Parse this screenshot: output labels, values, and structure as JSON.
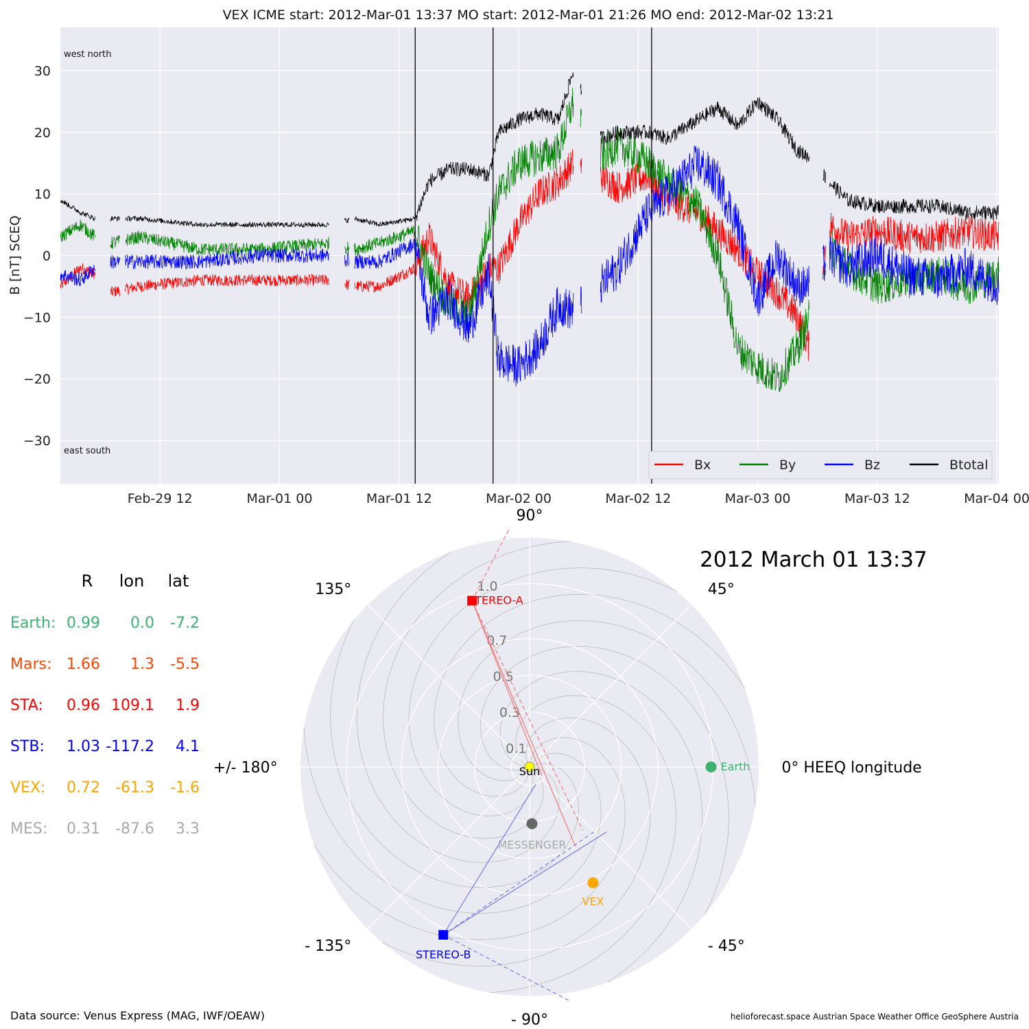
{
  "header": {
    "title": "VEX    ICME start: 2012-Mar-01 13:37   MO start: 2012-Mar-01 21:26   MO end: 2012-Mar-02 13:21"
  },
  "chart_data": [
    {
      "type": "line",
      "ylabel": "B [nT] SCEQ",
      "ylim": [
        -37,
        37
      ],
      "yticks": [
        -30,
        -20,
        -10,
        0,
        10,
        20,
        30
      ],
      "ytick_labels": [
        "−30",
        "−20",
        "−10",
        "0",
        "10",
        "20",
        "30"
      ],
      "xlim": [
        "2012-02-29T02:00",
        "2012-03-04T00:12"
      ],
      "xticks": [
        "2012-02-29T12:00",
        "2012-03-01T00:00",
        "2012-03-01T12:00",
        "2012-03-02T00:00",
        "2012-03-02T12:00",
        "2012-03-03T00:00",
        "2012-03-03T12:00",
        "2012-03-04T00:00"
      ],
      "xtick_labels": [
        "Feb-29 12",
        "Mar-01 00",
        "Mar-01 12",
        "Mar-02 00",
        "Mar-02 12",
        "Mar-03 00",
        "Mar-03 12",
        "Mar-04 00"
      ],
      "grid": true,
      "annotations": {
        "top_left": "west    north",
        "bottom_left": "east    south"
      },
      "vertical_lines": [
        "2012-03-01T13:37",
        "2012-03-01T21:26",
        "2012-03-02T13:21"
      ],
      "legend": {
        "placement": "lower-right",
        "entries": [
          "Bx",
          "By",
          "Bz",
          "Btotal"
        ]
      },
      "colors": {
        "Bx": "#ff0000",
        "By": "#008000",
        "Bz": "#0000ff",
        "Btotal": "#000000"
      },
      "gaps": [
        [
          "2012-02-29T05:30",
          "2012-02-29T07:00"
        ],
        [
          "2012-02-29T08:00",
          "2012-02-29T08:30"
        ],
        [
          "2012-03-01T05:00",
          "2012-03-01T06:30"
        ],
        [
          "2012-03-01T07:00",
          "2012-03-01T07:30"
        ],
        [
          "2012-03-02T05:30",
          "2012-03-02T06:10"
        ],
        [
          "2012-03-02T06:20",
          "2012-03-02T08:10"
        ],
        [
          "2012-03-03T05:10",
          "2012-03-03T06:30"
        ],
        [
          "2012-03-03T06:50",
          "2012-03-03T07:10"
        ]
      ],
      "x": [
        "2012-02-29T02:00",
        "2012-02-29T04:00",
        "2012-02-29T05:30",
        "2012-02-29T07:00",
        "2012-02-29T10:00",
        "2012-02-29T16:00",
        "2012-02-29T22:00",
        "2012-03-01T05:00",
        "2012-03-01T07:30",
        "2012-03-01T10:00",
        "2012-03-01T13:37",
        "2012-03-01T15:00",
        "2012-03-01T17:00",
        "2012-03-01T19:00",
        "2012-03-01T21:00",
        "2012-03-01T22:00",
        "2012-03-02T00:00",
        "2012-03-02T02:00",
        "2012-03-02T04:00",
        "2012-03-02T05:30",
        "2012-03-02T08:10",
        "2012-03-02T10:00",
        "2012-03-02T13:00",
        "2012-03-02T15:00",
        "2012-03-02T18:00",
        "2012-03-02T20:00",
        "2012-03-02T22:00",
        "2012-03-03T00:00",
        "2012-03-03T02:00",
        "2012-03-03T04:00",
        "2012-03-03T05:10",
        "2012-03-03T07:10",
        "2012-03-03T09:00",
        "2012-03-03T12:00",
        "2012-03-03T15:00",
        "2012-03-03T18:00",
        "2012-03-03T21:00",
        "2012-03-04T00:12"
      ],
      "series": [
        {
          "name": "Bx",
          "values": [
            -5,
            -2,
            -3,
            -6,
            -5,
            -4,
            -4,
            -4,
            -5,
            -5,
            -2,
            3,
            -5,
            -7,
            -2,
            -2,
            5,
            10,
            12,
            15,
            13,
            11,
            13,
            9,
            7,
            4,
            1,
            -3,
            -6,
            -10,
            -15,
            5,
            3,
            4,
            3,
            3,
            4,
            3
          ]
        },
        {
          "name": "By",
          "values": [
            3,
            5,
            3,
            2,
            3,
            1,
            1,
            2,
            1,
            2,
            4,
            -3,
            -8,
            -10,
            5,
            10,
            15,
            16,
            17,
            25,
            16,
            18,
            15,
            12,
            8,
            0,
            -15,
            -18,
            -20,
            -15,
            -10,
            2,
            -2,
            -5,
            -4,
            -3,
            -5,
            -3
          ]
        },
        {
          "name": "Bz",
          "values": [
            -3,
            -4,
            -2,
            -1,
            -1,
            -1,
            0,
            0,
            -1,
            -1,
            2,
            -10,
            -7,
            -12,
            -3,
            -17,
            -18,
            -15,
            -8,
            -9,
            -5,
            -2,
            7,
            10,
            15,
            12,
            5,
            -7,
            0,
            -5,
            -5,
            0,
            -2,
            0,
            -3,
            -4,
            -2,
            -5
          ]
        },
        {
          "name": "Btotal",
          "values": [
            9,
            7,
            6,
            6,
            6,
            5,
            5,
            5,
            6,
            5,
            6,
            12,
            14,
            14,
            13,
            20,
            22,
            23,
            22,
            30,
            19,
            20,
            20,
            19,
            22,
            24,
            21,
            25,
            22,
            17,
            16,
            12,
            9,
            8,
            8,
            8,
            7,
            7
          ]
        }
      ]
    },
    {
      "type": "scatter",
      "projection": "polar",
      "title": "2012 March 01  13:37",
      "rticks": [
        0.1,
        0.3,
        0.5,
        0.7,
        1.0
      ],
      "rtick_labels": [
        "0.1",
        "0.3",
        "0.5",
        "0.7",
        "1.0"
      ],
      "rlim": [
        0,
        1.25
      ],
      "angle_labels": [
        "0° HEEQ longitude",
        "45°",
        "90°",
        "135°",
        "+/- 180°",
        "- 135°",
        "- 90°",
        "- 45°"
      ],
      "points": [
        {
          "name": "Sun",
          "r": 0.0,
          "lon": 0.0,
          "color": "#ffff00",
          "marker": "circle"
        },
        {
          "name": "Earth",
          "r": 0.99,
          "lon": 0.0,
          "color": "#3cb371",
          "marker": "circle"
        },
        {
          "name": "STEREO-A",
          "r": 0.96,
          "lon": 109.1,
          "color": "#ff0000",
          "marker": "square"
        },
        {
          "name": "STEREO-B",
          "r": 1.03,
          "lon": -117.2,
          "color": "#0000ff",
          "marker": "square"
        },
        {
          "name": "VEX",
          "r": 0.72,
          "lon": -61.3,
          "color": "#ffa500",
          "marker": "circle"
        },
        {
          "name": "MESSENGER",
          "r": 0.31,
          "lon": -87.6,
          "color": "#666666",
          "marker": "circle"
        }
      ]
    }
  ],
  "position_table": {
    "headers": [
      "R",
      "lon",
      "lat"
    ],
    "rows": [
      {
        "label": "Earth:",
        "r": "0.99",
        "lon": "0.0",
        "lat": "-7.2",
        "color": "#3cb371"
      },
      {
        "label": "Mars:",
        "r": "1.66",
        "lon": "1.3",
        "lat": "-5.5",
        "color": "#ff4500"
      },
      {
        "label": "STA:",
        "r": "0.96",
        "lon": "109.1",
        "lat": "1.9",
        "color": "#ff0000"
      },
      {
        "label": "STB:",
        "r": "1.03",
        "lon": "-117.2",
        "lat": "4.1",
        "color": "#0000ff"
      },
      {
        "label": "VEX:",
        "r": "0.72",
        "lon": "-61.3",
        "lat": "-1.6",
        "color": "#ffa500"
      },
      {
        "label": "MES:",
        "r": "0.31",
        "lon": "-87.6",
        "lat": "3.3",
        "color": "#aaaaaa"
      }
    ]
  },
  "footer": {
    "source": "Data source: Venus Express (MAG, IWF/OEAW)",
    "credits": "helioforecast.space     Austrian Space Weather Office     GeoSphere Austria"
  }
}
